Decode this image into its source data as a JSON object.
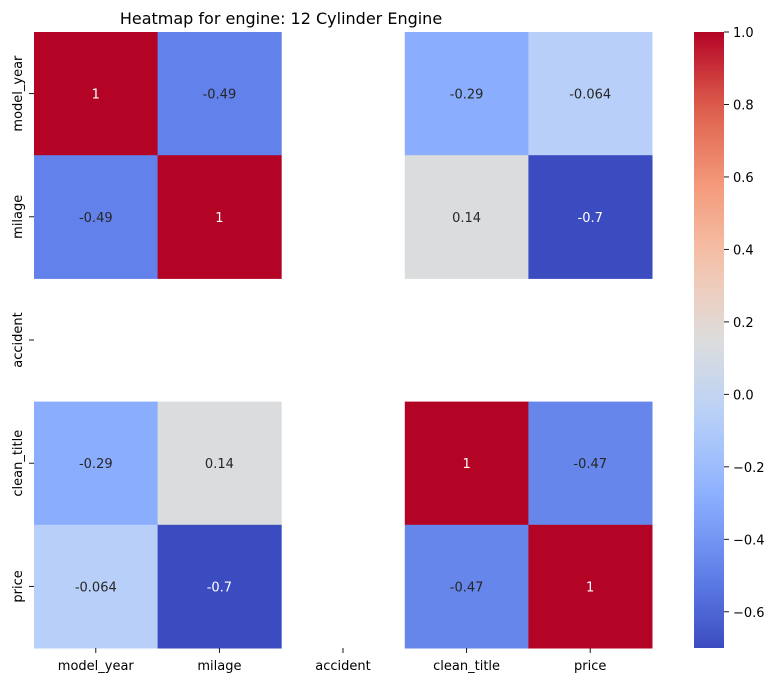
{
  "chart_data": {
    "type": "heatmap",
    "title": "Heatmap for engine: 12 Cylinder Engine",
    "xlabel": "",
    "ylabel": "",
    "x_categories": [
      "model_year",
      "milage",
      "accident",
      "clean_title",
      "price"
    ],
    "y_categories": [
      "model_year",
      "milage",
      "accident",
      "clean_title",
      "price"
    ],
    "values": [
      [
        1,
        -0.49,
        null,
        -0.29,
        -0.064
      ],
      [
        -0.49,
        1,
        null,
        0.14,
        -0.7
      ],
      [
        null,
        null,
        null,
        null,
        null
      ],
      [
        -0.29,
        0.14,
        null,
        1,
        -0.47
      ],
      [
        -0.064,
        -0.7,
        null,
        -0.47,
        1
      ]
    ],
    "annotations": [
      [
        "1",
        "-0.49",
        "",
        "-0.29",
        "-0.064"
      ],
      [
        "-0.49",
        "1",
        "",
        "0.14",
        "-0.7"
      ],
      [
        "",
        "",
        "",
        "",
        ""
      ],
      [
        "-0.29",
        "0.14",
        "",
        "1",
        "-0.47"
      ],
      [
        "-0.064",
        "-0.7",
        "",
        "-0.47",
        "1"
      ]
    ],
    "colormap": "coolwarm",
    "vmin": -0.7,
    "vmax": 1.0,
    "colorbar": {
      "ticks": [
        1.0,
        0.8,
        0.6,
        0.4,
        0.2,
        0.0,
        -0.2,
        -0.4,
        -0.6
      ],
      "tick_labels": [
        "1.0",
        "0.8",
        "0.6",
        "0.4",
        "0.2",
        "0.0",
        "−0.2",
        "−0.4",
        "−0.6"
      ]
    },
    "grid": false,
    "legend": "colorbar-right"
  }
}
